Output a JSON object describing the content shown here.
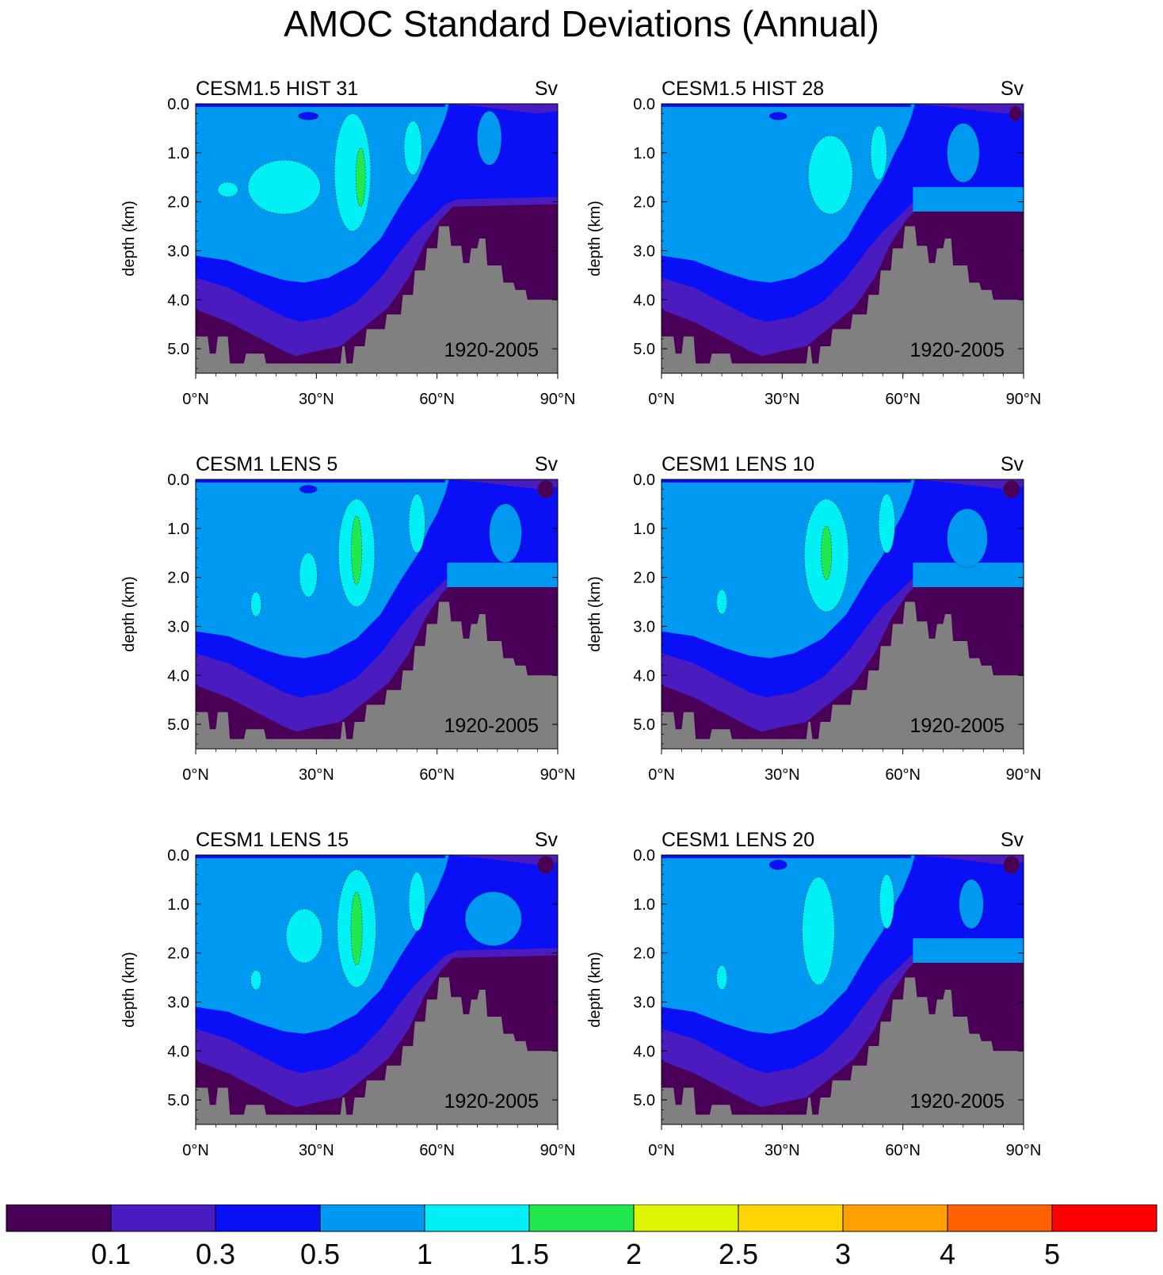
{
  "title": "AMOC Standard Deviations (Annual)",
  "chart_data": [
    {
      "type": "heatmap",
      "title": "CESM1.5 HIST 31",
      "units": "Sv",
      "period": "1920-2005",
      "ylabel": "depth (km)",
      "xlim": [
        0,
        90
      ],
      "ylim": [
        5.5,
        0.0
      ],
      "xticks": [
        "0°N",
        "30°N",
        "60°N",
        "90°N"
      ],
      "yticks": [
        "0.0",
        "1.0",
        "2.0",
        "3.0",
        "4.0",
        "5.0"
      ],
      "max_sd": {
        "lat": 41,
        "depth_km": 1.5,
        "level": "2"
      }
    },
    {
      "type": "heatmap",
      "title": "CESM1.5 HIST 28",
      "units": "Sv",
      "period": "1920-2005",
      "ylabel": "depth (km)",
      "xlim": [
        0,
        90
      ],
      "ylim": [
        5.5,
        0.0
      ],
      "xticks": [
        "0°N",
        "30°N",
        "60°N",
        "90°N"
      ],
      "yticks": [
        "0.0",
        "1.0",
        "2.0",
        "3.0",
        "4.0",
        "5.0"
      ],
      "max_sd": {
        "lat": 42,
        "depth_km": 1.5,
        "level": "1.5"
      }
    },
    {
      "type": "heatmap",
      "title": "CESM1 LENS 5",
      "units": "Sv",
      "period": "1920-2005",
      "ylabel": "depth (km)",
      "xlim": [
        0,
        90
      ],
      "ylim": [
        5.5,
        0.0
      ],
      "xticks": [
        "0°N",
        "30°N",
        "60°N",
        "90°N"
      ],
      "yticks": [
        "0.0",
        "1.0",
        "2.0",
        "3.0",
        "4.0",
        "5.0"
      ],
      "max_sd": {
        "lat": 40,
        "depth_km": 1.4,
        "level": "2"
      }
    },
    {
      "type": "heatmap",
      "title": "CESM1 LENS 10",
      "units": "Sv",
      "period": "1920-2005",
      "ylabel": "depth (km)",
      "xlim": [
        0,
        90
      ],
      "ylim": [
        5.5,
        0.0
      ],
      "xticks": [
        "0°N",
        "30°N",
        "60°N",
        "90°N"
      ],
      "yticks": [
        "0.0",
        "1.0",
        "2.0",
        "3.0",
        "4.0",
        "5.0"
      ],
      "max_sd": {
        "lat": 41,
        "depth_km": 1.5,
        "level": "2"
      }
    },
    {
      "type": "heatmap",
      "title": "CESM1 LENS 15",
      "units": "Sv",
      "period": "1920-2005",
      "ylabel": "depth (km)",
      "xlim": [
        0,
        90
      ],
      "ylim": [
        5.5,
        0.0
      ],
      "xticks": [
        "0°N",
        "30°N",
        "60°N",
        "90°N"
      ],
      "yticks": [
        "0.0",
        "1.0",
        "2.0",
        "3.0",
        "4.0",
        "5.0"
      ],
      "max_sd": {
        "lat": 40,
        "depth_km": 1.5,
        "level": "2"
      }
    },
    {
      "type": "heatmap",
      "title": "CESM1 LENS 20",
      "units": "Sv",
      "period": "1920-2005",
      "ylabel": "depth (km)",
      "xlim": [
        0,
        90
      ],
      "ylim": [
        5.5,
        0.0
      ],
      "xticks": [
        "0°N",
        "30°N",
        "60°N",
        "90°N"
      ],
      "yticks": [
        "0.0",
        "1.0",
        "2.0",
        "3.0",
        "4.0",
        "5.0"
      ],
      "max_sd": {
        "lat": 39,
        "depth_km": 1.5,
        "level": "1.5"
      }
    }
  ],
  "colorbar": {
    "labels": [
      "0.1",
      "0.3",
      "0.5",
      "1",
      "1.5",
      "2",
      "2.5",
      "3",
      "4",
      "5"
    ],
    "colors": [
      "#4a0057",
      "#4a1bbf",
      "#0a10f5",
      "#0099f2",
      "#00f0f5",
      "#22e850",
      "#ddf500",
      "#ffd500",
      "#ffa000",
      "#ff6000",
      "#ff0000"
    ]
  },
  "colors": {
    "land": "#808080",
    "level_0": "#4a0057",
    "level_1": "#4a1bbf",
    "level_2": "#0a10f5",
    "level_3": "#0099f2",
    "level_4": "#00f0f5",
    "level_5": "#22e850"
  }
}
